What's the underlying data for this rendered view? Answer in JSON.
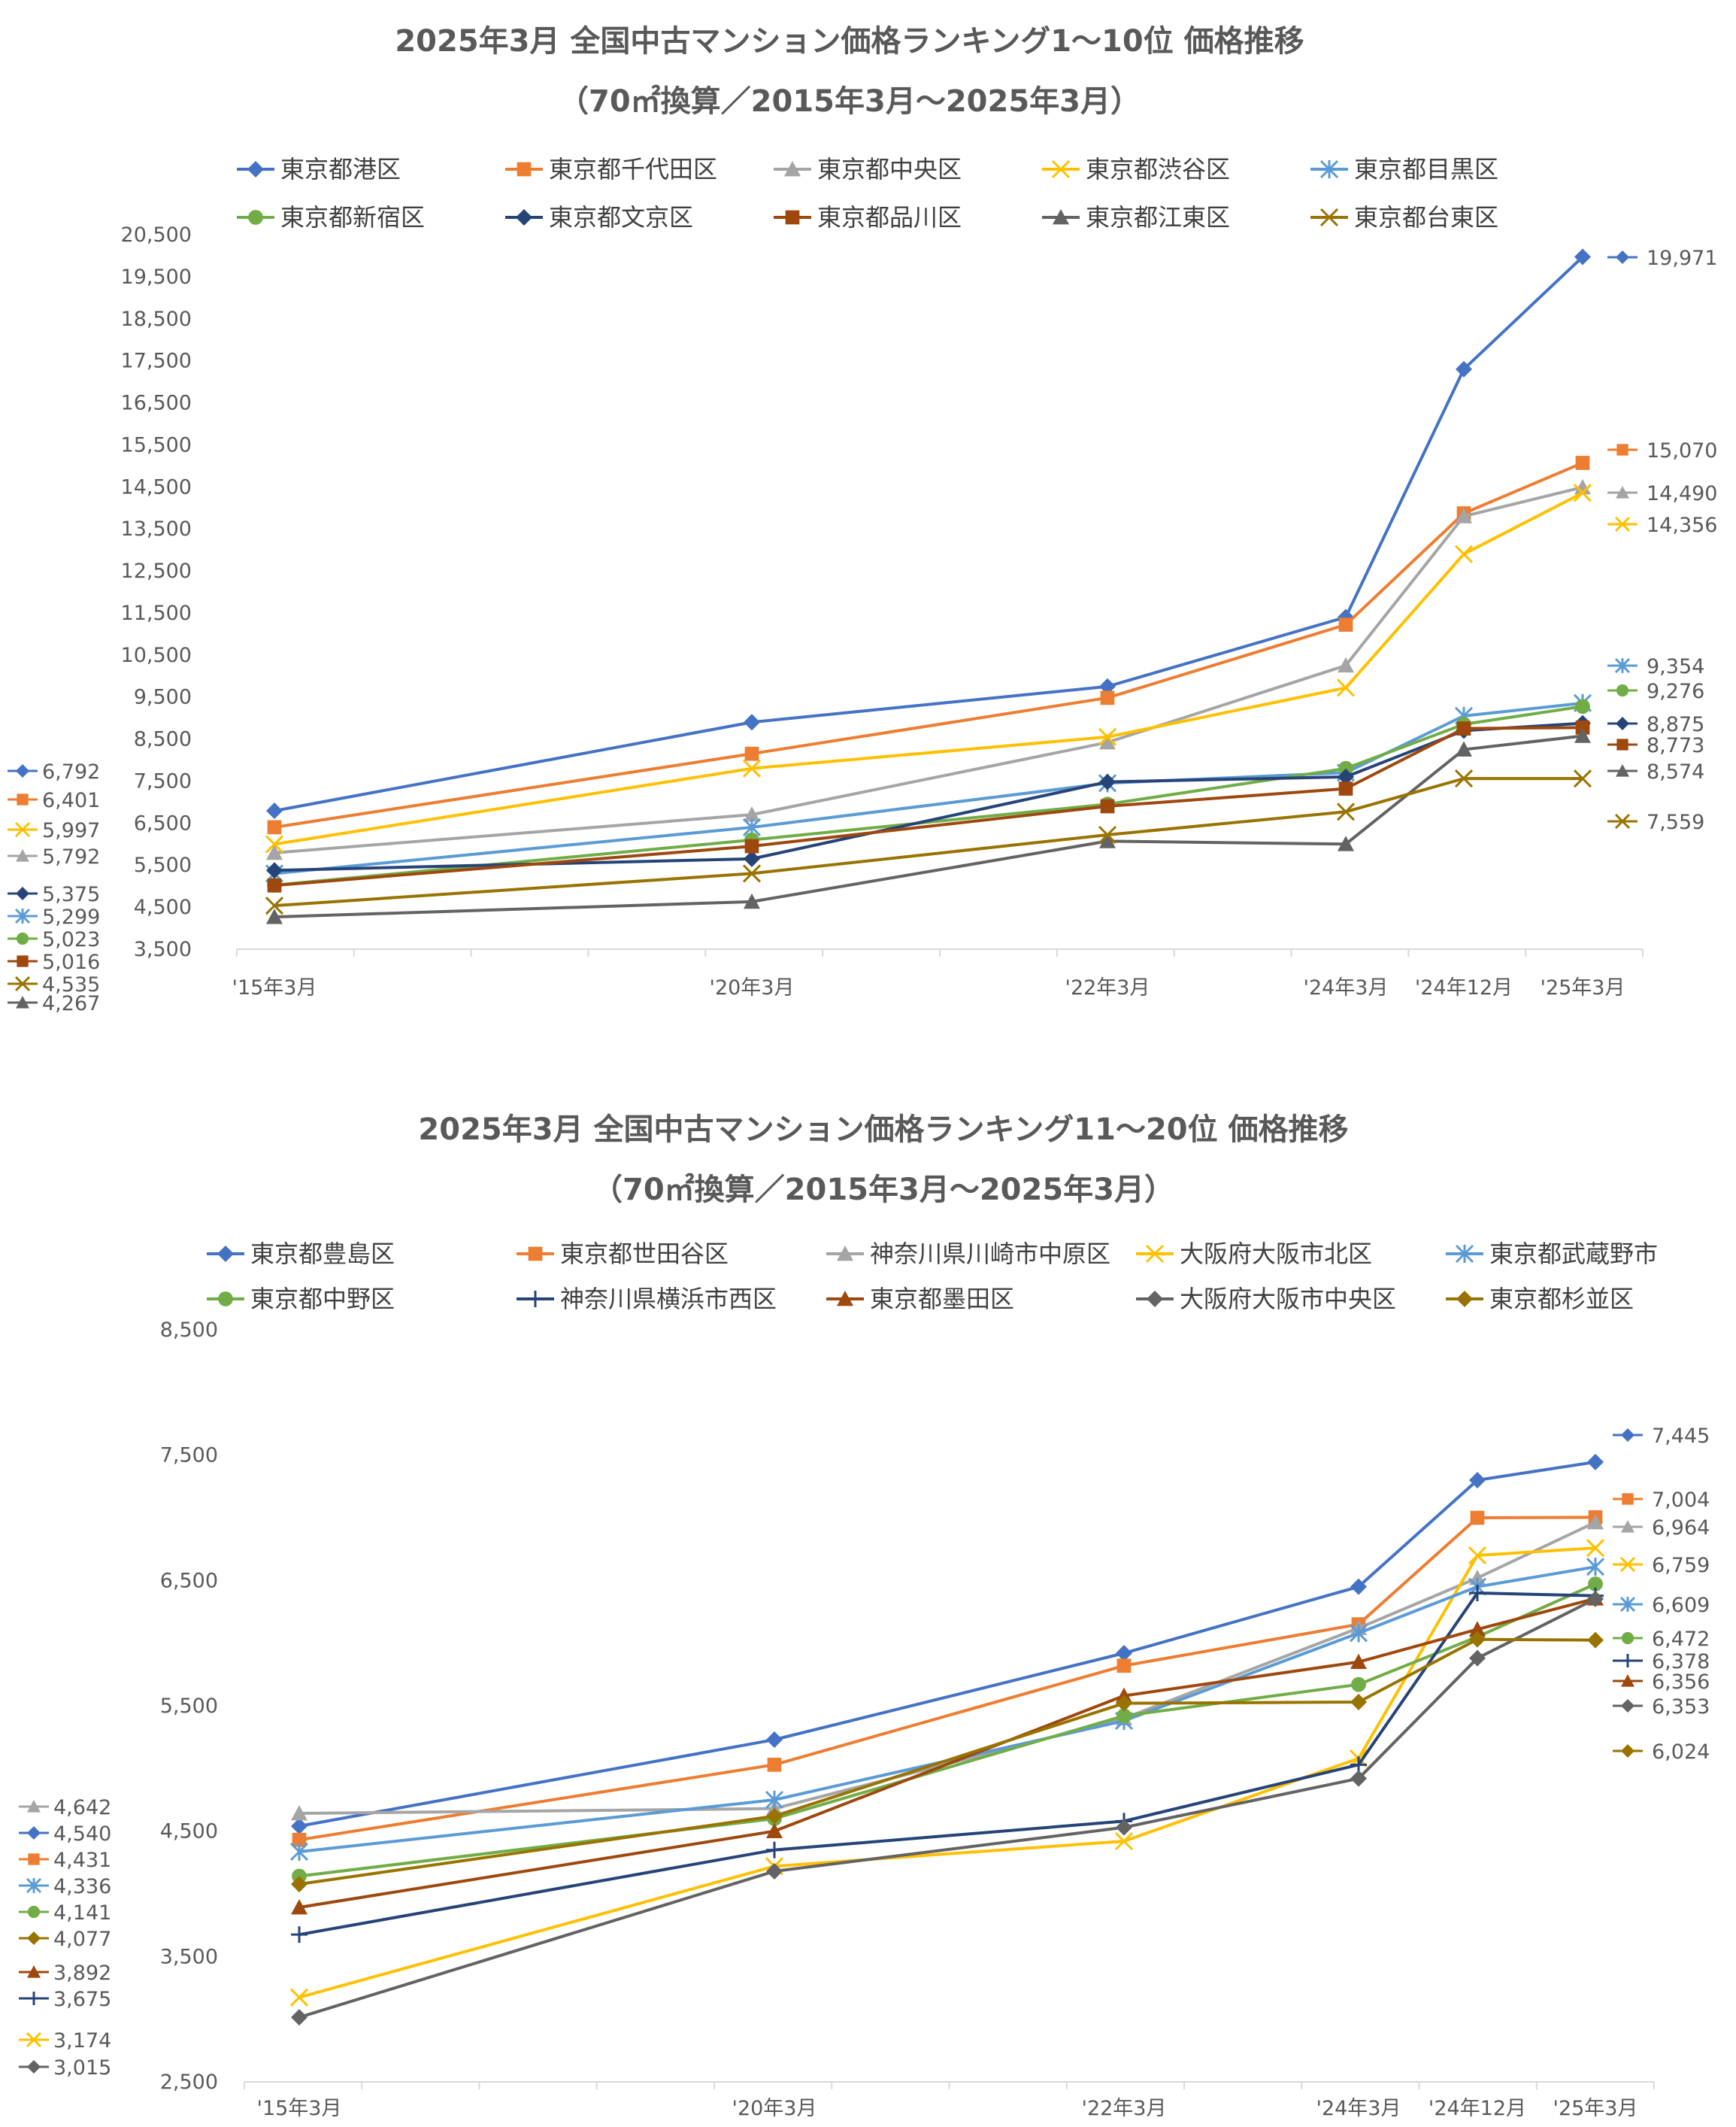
{
  "chart_data": [
    {
      "type": "line",
      "title": "2025年3月  全国中古マンション価格ランキング1～10位  価格推移",
      "subtitle": "（70㎡換算／2015年3月～2025年3月）",
      "categories": [
        "'15年3月",
        "'20年3月",
        "'22年3月",
        "'24年3月",
        "'24年12月",
        "'25年3月"
      ],
      "x": [
        2015.0,
        2020.0,
        2022.0,
        2024.0,
        2024.75,
        2025.0
      ],
      "ylim": [
        3500,
        20500
      ],
      "yticks": [
        "20,500",
        "19,500",
        "18,500",
        "17,500",
        "16,500",
        "15,500",
        "14,500",
        "13,500",
        "12,500",
        "11,500",
        "10,500",
        "9,500",
        "8,500",
        "7,500",
        "6,500",
        "5,500",
        "4,500",
        "3,500"
      ],
      "ytick_values": [
        20500,
        19500,
        18500,
        17500,
        16500,
        15500,
        14500,
        13500,
        12500,
        11500,
        10500,
        9500,
        8500,
        7500,
        6500,
        5500,
        4500,
        3500
      ],
      "series": [
        {
          "name": "東京都港区",
          "color": "#4472C4",
          "marker": "diamond",
          "values": [
            6792,
            8900,
            9750,
            11400,
            17300,
            19971
          ],
          "start_label": "6,792",
          "end_label": "19,971"
        },
        {
          "name": "東京都千代田区",
          "color": "#ED7D31",
          "marker": "square",
          "values": [
            6401,
            8150,
            9480,
            11220,
            13870,
            15070
          ],
          "start_label": "6,401",
          "end_label": "15,070"
        },
        {
          "name": "東京都中央区",
          "color": "#A5A5A5",
          "marker": "triangle",
          "values": [
            5792,
            6700,
            8420,
            10250,
            13800,
            14490
          ],
          "start_label": "5,792",
          "end_label": "14,490"
        },
        {
          "name": "東京都渋谷区",
          "color": "#FFC000",
          "marker": "x",
          "values": [
            5997,
            7800,
            8550,
            9720,
            12900,
            14356
          ],
          "start_label": "5,997",
          "end_label": "14,356"
        },
        {
          "name": "東京都目黒区",
          "color": "#5B9BD5",
          "marker": "asterisk",
          "values": [
            5299,
            6400,
            7450,
            7700,
            9050,
            9354
          ],
          "start_label": "5,299",
          "end_label": "9,354"
        },
        {
          "name": "東京都新宿区",
          "color": "#70AD47",
          "marker": "circle",
          "values": [
            5023,
            6100,
            6950,
            7800,
            8850,
            9276
          ],
          "start_label": "5,023",
          "end_label": "9,276"
        },
        {
          "name": "東京都文京区",
          "color": "#264478",
          "marker": "diamond",
          "values": [
            5375,
            5650,
            7480,
            7600,
            8700,
            8875
          ],
          "start_label": "5,375",
          "end_label": "8,875"
        },
        {
          "name": "東京都品川区",
          "color": "#9E480E",
          "marker": "square",
          "values": [
            5016,
            5950,
            6900,
            7320,
            8750,
            8773
          ],
          "start_label": "5,016",
          "end_label": "8,773"
        },
        {
          "name": "東京都江東区",
          "color": "#636363",
          "marker": "triangle",
          "values": [
            4267,
            4630,
            6070,
            6000,
            8250,
            8574
          ],
          "start_label": "4,267",
          "end_label": "8,574"
        },
        {
          "name": "東京都台東区",
          "color": "#997300",
          "marker": "x",
          "values": [
            4535,
            5300,
            6220,
            6770,
            7560,
            7559
          ],
          "start_label": "4,535",
          "end_label": "7,559"
        }
      ]
    },
    {
      "type": "line",
      "title": "2025年3月  全国中古マンション価格ランキング11～20位  価格推移",
      "subtitle": "（70㎡換算／2015年3月～2025年3月）",
      "categories": [
        "'15年3月",
        "'20年3月",
        "'22年3月",
        "'24年3月",
        "'24年12月",
        "'25年3月"
      ],
      "x": [
        2015.0,
        2020.0,
        2022.0,
        2024.0,
        2024.75,
        2025.0
      ],
      "ylim": [
        2500,
        8500
      ],
      "yticks": [
        "8,500",
        "7,500",
        "6,500",
        "5,500",
        "4,500",
        "3,500",
        "2,500"
      ],
      "ytick_values": [
        8500,
        7500,
        6500,
        5500,
        4500,
        3500,
        2500
      ],
      "series": [
        {
          "name": "東京都豊島区",
          "color": "#4472C4",
          "marker": "diamond",
          "values": [
            4540,
            5230,
            5920,
            6450,
            7300,
            7445
          ],
          "start_label": "4,540",
          "end_label": "7,445"
        },
        {
          "name": "東京都世田谷区",
          "color": "#ED7D31",
          "marker": "square",
          "values": [
            4431,
            5030,
            5820,
            6150,
            7000,
            7004
          ],
          "start_label": "4,431",
          "end_label": "7,004"
        },
        {
          "name": "神奈川県川崎市中原区",
          "color": "#A5A5A5",
          "marker": "triangle",
          "values": [
            4642,
            4680,
            5400,
            6120,
            6520,
            6964
          ],
          "start_label": "4,642",
          "end_label": "6,964"
        },
        {
          "name": "大阪府大阪市北区",
          "color": "#FFC000",
          "marker": "x",
          "values": [
            3174,
            4220,
            4420,
            5080,
            6700,
            6759
          ],
          "start_label": "3,174",
          "end_label": "6,759"
        },
        {
          "name": "東京都武蔵野市",
          "color": "#5B9BD5",
          "marker": "asterisk",
          "values": [
            4336,
            4750,
            5380,
            6080,
            6450,
            6609
          ],
          "start_label": "4,336",
          "end_label": "6,609"
        },
        {
          "name": "東京都中野区",
          "color": "#70AD47",
          "marker": "circle",
          "values": [
            4141,
            4600,
            5420,
            5670,
            6050,
            6472
          ],
          "start_label": "4,141",
          "end_label": "6,472"
        },
        {
          "name": "神奈川県横浜市西区",
          "color": "#264478",
          "marker": "plus",
          "values": [
            3675,
            4350,
            4580,
            5030,
            6400,
            6378
          ],
          "start_label": "3,675",
          "end_label": "6,378"
        },
        {
          "name": "東京都墨田区",
          "color": "#9E480E",
          "marker": "triangle",
          "values": [
            3892,
            4500,
            5580,
            5850,
            6110,
            6356
          ],
          "start_label": "3,892",
          "end_label": "6,356"
        },
        {
          "name": "大阪府大阪市中央区",
          "color": "#636363",
          "marker": "diamond",
          "values": [
            3015,
            4180,
            4530,
            4920,
            5880,
            6353
          ],
          "start_label": "3,015",
          "end_label": "6,353"
        },
        {
          "name": "東京都杉並区",
          "color": "#997300",
          "marker": "diamond",
          "values": [
            4077,
            4620,
            5520,
            5530,
            6030,
            6024
          ],
          "start_label": "4,077",
          "end_label": "6,024"
        }
      ]
    }
  ]
}
